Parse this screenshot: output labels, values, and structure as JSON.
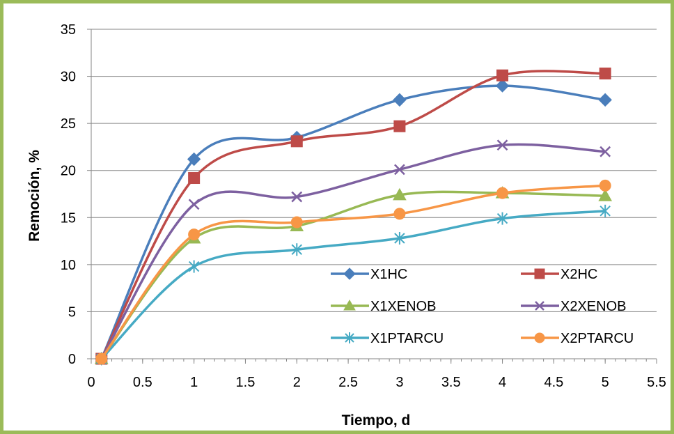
{
  "chart_data": {
    "type": "line",
    "title": "",
    "xlabel": "Tiempo, d",
    "ylabel": "Remoción,  %",
    "xlim": [
      0,
      5.5
    ],
    "ylim": [
      0,
      35
    ],
    "xticks": [
      "0",
      "0.5",
      "1",
      "1.5",
      "2",
      "2.5",
      "3",
      "3.5",
      "4",
      "4.5",
      "5",
      "5.5"
    ],
    "yticks": [
      "0",
      "5",
      "10",
      "15",
      "20",
      "25",
      "30",
      "35"
    ],
    "grid": "horizontal",
    "legend_position": "lower-right",
    "x": [
      0.1,
      1,
      2,
      3,
      4,
      5
    ],
    "series": [
      {
        "name": "X1HC",
        "color": "#4a7ebb",
        "marker": "diamond",
        "values": [
          0,
          21.2,
          23.5,
          27.5,
          29.0,
          27.5
        ]
      },
      {
        "name": "X2HC",
        "color": "#be4b48",
        "marker": "square",
        "values": [
          0,
          19.2,
          23.1,
          24.7,
          30.1,
          30.3
        ]
      },
      {
        "name": "X1XENOB",
        "color": "#98b954",
        "marker": "triangle",
        "values": [
          0,
          12.8,
          14.1,
          17.4,
          17.6,
          17.3
        ]
      },
      {
        "name": "X2XENOB",
        "color": "#7d60a0",
        "marker": "x",
        "values": [
          0,
          16.4,
          17.2,
          20.1,
          22.7,
          22.0
        ]
      },
      {
        "name": "X1PTARCU",
        "color": "#46aac4",
        "marker": "star",
        "values": [
          0,
          9.8,
          11.6,
          12.8,
          14.9,
          15.7
        ]
      },
      {
        "name": "X2PTARCU",
        "color": "#f79646",
        "marker": "circle",
        "values": [
          0,
          13.2,
          14.5,
          15.4,
          17.6,
          18.4
        ]
      }
    ]
  }
}
